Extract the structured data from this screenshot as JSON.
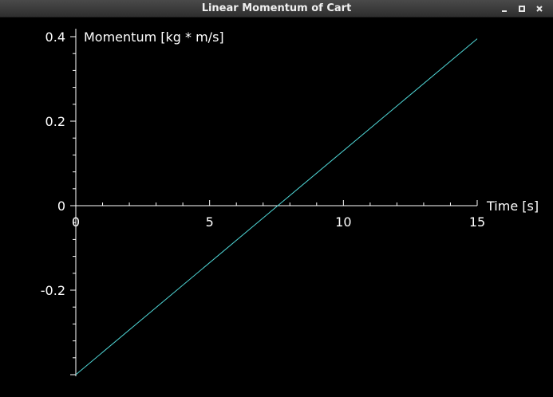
{
  "window": {
    "title": "Linear Momentum of Cart",
    "buttons": {
      "minimize": "minimize",
      "maximize": "maximize",
      "close": "close"
    }
  },
  "colors": {
    "line": "#4fd6d6",
    "axis": "#ffffff",
    "background": "#000000"
  },
  "chart_data": {
    "type": "line",
    "title": "",
    "xlabel": "Time [s]",
    "ylabel": "Momentum [kg * m/s]",
    "xlim": [
      0,
      15
    ],
    "ylim": [
      -0.4,
      0.4
    ],
    "xticks": [
      "0",
      "5",
      "10",
      "15"
    ],
    "yticks": [
      "0.4",
      "0.2",
      "0",
      "-0.2"
    ],
    "grid": false,
    "series": [
      {
        "x": [
          0,
          15
        ],
        "y": [
          -0.4,
          0.395
        ]
      }
    ]
  }
}
